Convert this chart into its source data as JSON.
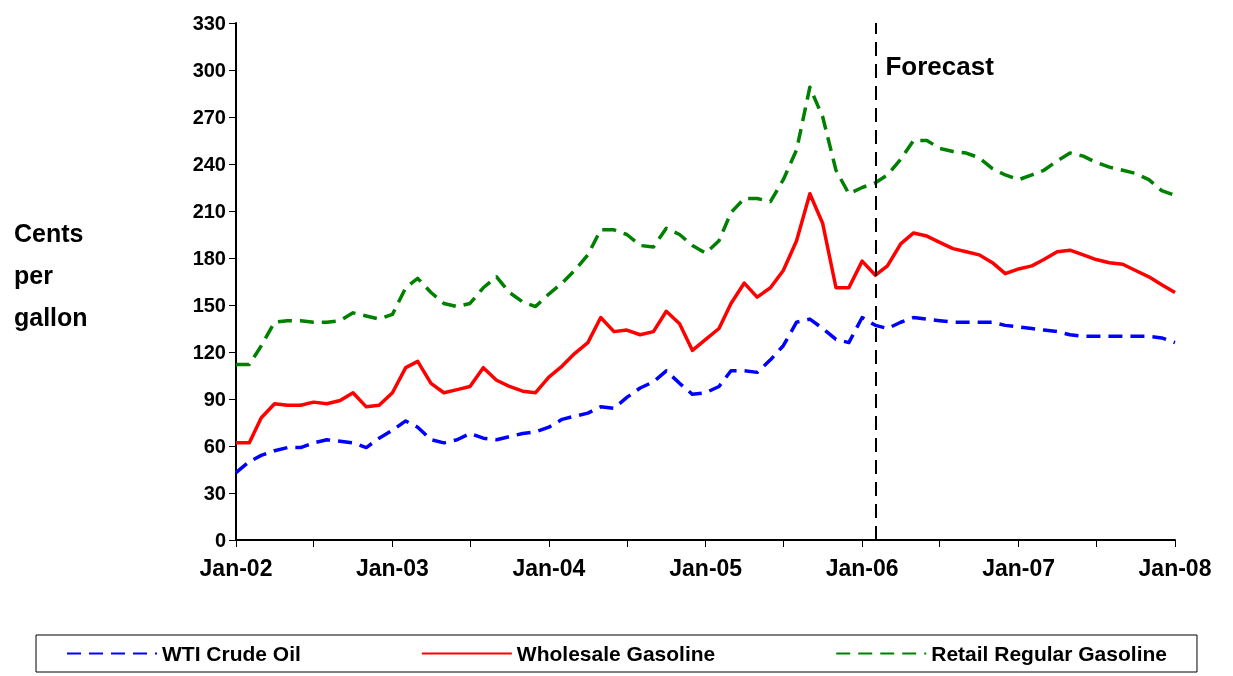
{
  "chart_data": {
    "type": "line",
    "ylabel": "Cents per gallon",
    "x": [
      "2002-01",
      "2002-02",
      "2002-03",
      "2002-04",
      "2002-05",
      "2002-06",
      "2002-07",
      "2002-08",
      "2002-09",
      "2002-10",
      "2002-11",
      "2002-12",
      "2003-01",
      "2003-02",
      "2003-03",
      "2003-04",
      "2003-05",
      "2003-06",
      "2003-07",
      "2003-08",
      "2003-09",
      "2003-10",
      "2003-11",
      "2003-12",
      "2004-01",
      "2004-02",
      "2004-03",
      "2004-04",
      "2004-05",
      "2004-06",
      "2004-07",
      "2004-08",
      "2004-09",
      "2004-10",
      "2004-11",
      "2004-12",
      "2005-01",
      "2005-02",
      "2005-03",
      "2005-04",
      "2005-05",
      "2005-06",
      "2005-07",
      "2005-08",
      "2005-09",
      "2005-10",
      "2005-11",
      "2005-12",
      "2006-01",
      "2006-02",
      "2006-03",
      "2006-04",
      "2006-05",
      "2006-06",
      "2006-07",
      "2006-08",
      "2006-09",
      "2006-10",
      "2006-11",
      "2006-12",
      "2007-01",
      "2007-02",
      "2007-03",
      "2007-04",
      "2007-05",
      "2007-06",
      "2007-07",
      "2007-08",
      "2007-09",
      "2007-10",
      "2007-11",
      "2007-12",
      "2008-01"
    ],
    "series": [
      {
        "name": "WTI Crude Oil",
        "color": "#0000ff",
        "line_style": "dashed",
        "values": [
          43,
          50,
          54,
          57,
          59,
          59,
          62,
          64,
          63,
          62,
          59,
          65,
          70,
          76,
          72,
          64,
          62,
          64,
          68,
          65,
          64,
          66,
          68,
          69,
          72,
          77,
          79,
          81,
          85,
          84,
          91,
          97,
          101,
          108,
          100,
          93,
          94,
          98,
          108,
          108,
          107,
          115,
          124,
          139,
          141,
          135,
          128,
          126,
          142,
          137,
          135,
          139,
          142,
          141,
          140,
          139,
          139,
          139,
          139,
          137,
          136,
          135,
          134,
          133,
          131,
          130,
          130,
          130,
          130,
          130,
          130,
          129,
          126
        ]
      },
      {
        "name": "Wholesale Gasoline",
        "color": "#ff0000",
        "line_style": "solid",
        "values": [
          62,
          62,
          78,
          87,
          86,
          86,
          88,
          87,
          89,
          94,
          85,
          86,
          94,
          110,
          114,
          100,
          94,
          96,
          98,
          110,
          102,
          98,
          95,
          94,
          104,
          111,
          119,
          126,
          142,
          133,
          134,
          131,
          133,
          146,
          138,
          121,
          128,
          135,
          151,
          164,
          155,
          161,
          172,
          191,
          221,
          202,
          161,
          161,
          178,
          169,
          175,
          189,
          196,
          194,
          190,
          186,
          184,
          182,
          177,
          170,
          173,
          175,
          179,
          184,
          185,
          182,
          179,
          177,
          176,
          172,
          168,
          163,
          158
        ]
      },
      {
        "name": "Retail Regular Gasoline",
        "color": "#008000",
        "line_style": "dashed",
        "values": [
          112,
          112,
          124,
          139,
          140,
          140,
          139,
          139,
          140,
          145,
          143,
          141,
          144,
          161,
          167,
          158,
          151,
          149,
          151,
          161,
          168,
          158,
          152,
          149,
          157,
          164,
          172,
          182,
          198,
          198,
          195,
          188,
          187,
          199,
          195,
          188,
          183,
          191,
          209,
          218,
          218,
          216,
          230,
          249,
          289,
          270,
          236,
          221,
          225,
          228,
          233,
          243,
          255,
          255,
          250,
          248,
          247,
          244,
          237,
          233,
          230,
          233,
          236,
          242,
          247,
          245,
          241,
          238,
          236,
          234,
          230,
          223,
          220
        ]
      }
    ],
    "xlim": [
      "2002-01",
      "2008-01"
    ],
    "xticks": [
      {
        "value": "2002-01",
        "label": "Jan-02"
      },
      {
        "value": "2002-07",
        "label": null
      },
      {
        "value": "2003-01",
        "label": "Jan-03"
      },
      {
        "value": "2003-07",
        "label": null
      },
      {
        "value": "2004-01",
        "label": "Jan-04"
      },
      {
        "value": "2004-07",
        "label": null
      },
      {
        "value": "2005-01",
        "label": "Jan-05"
      },
      {
        "value": "2005-07",
        "label": null
      },
      {
        "value": "2006-01",
        "label": "Jan-06"
      },
      {
        "value": "2006-07",
        "label": null
      },
      {
        "value": "2007-01",
        "label": "Jan-07"
      },
      {
        "value": "2007-07",
        "label": null
      },
      {
        "value": "2008-01",
        "label": "Jan-08"
      }
    ],
    "ylim": [
      0,
      330
    ],
    "yticks": [
      0,
      30,
      60,
      90,
      120,
      150,
      180,
      210,
      240,
      270,
      300,
      330
    ],
    "ref_lines": [
      {
        "axis": "x",
        "value": "2006-02",
        "label": "Forecast",
        "color": "#000000",
        "line_style": "dashed"
      }
    ],
    "grid": false,
    "legend": "bottom",
    "marker": "none"
  }
}
